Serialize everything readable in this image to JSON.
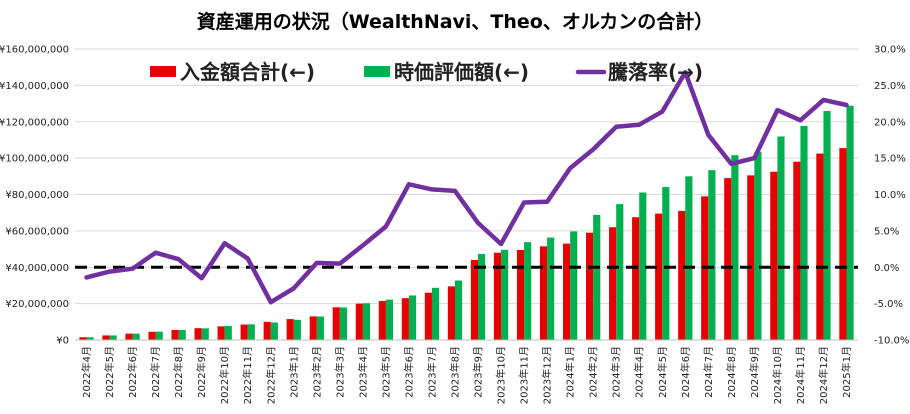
{
  "chart_data": {
    "type": "bar",
    "title": "資産運用の状況（WealthNavi、Theo、オルカンの合計）",
    "categories": [
      "2022年4月",
      "2022年5月",
      "2022年6月",
      "2022年7月",
      "2022年8月",
      "2022年9月",
      "2022年10月",
      "2022年11月",
      "2022年12月",
      "2023年1月",
      "2023年2月",
      "2023年3月",
      "2023年4月",
      "2023年5月",
      "2023年6月",
      "2023年7月",
      "2023年8月",
      "2023年9月",
      "2023年10月",
      "2023年11月",
      "2023年12月",
      "2024年1月",
      "2024年2月",
      "2024年3月",
      "2024年4月",
      "2024年5月",
      "2024年6月",
      "2024年7月",
      "2024年8月",
      "2024年9月",
      "2024年10月",
      "2024年11月",
      "2024年12月",
      "2025年1月"
    ],
    "series": [
      {
        "name": "入金額合計(←)",
        "type": "bar",
        "axis": "left",
        "color": "#e60000",
        "values": [
          1500000,
          2500000,
          3500000,
          4500000,
          5500000,
          6500000,
          7500000,
          8500000,
          10000000,
          11500000,
          13000000,
          18000000,
          20000000,
          21500000,
          23000000,
          26000000,
          29500000,
          44000000,
          48000000,
          49500000,
          51500000,
          53000000,
          59000000,
          62000000,
          67500000,
          69500000,
          71000000,
          79000000,
          89000000,
          90500000,
          92500000,
          98000000,
          102500000,
          105500000
        ]
      },
      {
        "name": "時価評価額(←)",
        "type": "bar",
        "axis": "left",
        "color": "#00b050",
        "values": [
          1500000,
          2500000,
          3500000,
          4600000,
          5500000,
          6400000,
          7700000,
          8600000,
          9600000,
          11100000,
          12900000,
          17900000,
          20200000,
          22200000,
          24500000,
          28700000,
          32700000,
          47300000,
          49600000,
          53800000,
          56300000,
          59700000,
          68800000,
          74700000,
          81100000,
          84100000,
          90000000,
          93400000,
          101600000,
          103500000,
          111900000,
          117700000,
          125900000,
          128800000
        ]
      },
      {
        "name": "騰落率(→)",
        "type": "line",
        "axis": "right",
        "color": "#7030a0",
        "values": [
          -1.4,
          -0.6,
          -0.2,
          2.0,
          1.1,
          -1.5,
          3.3,
          1.2,
          -4.8,
          -2.9,
          0.6,
          0.5,
          3.0,
          5.6,
          11.4,
          10.7,
          10.5,
          6.1,
          3.2,
          8.9,
          9.0,
          13.6,
          16.2,
          19.3,
          19.6,
          21.4,
          26.8,
          18.2,
          14.2,
          15.0,
          21.6,
          20.2,
          23.0,
          22.3
        ]
      }
    ],
    "ylim_left": [
      0,
      160000000
    ],
    "ylim_right": [
      -10,
      30
    ],
    "yticks_left": [
      "¥0",
      "¥20,000,000",
      "¥40,000,000",
      "¥60,000,000",
      "¥80,000,000",
      "¥100,000,000",
      "¥120,000,000",
      "¥140,000,000",
      "¥160,000,000"
    ],
    "yticks_right": [
      "-10.0%",
      "-5.0%",
      "0.0%",
      "5.0%",
      "10.0%",
      "15.0%",
      "20.0%",
      "25.0%",
      "30.0%"
    ],
    "grid": true,
    "zero_line": {
      "style": "dashed",
      "color": "#000000",
      "at_right_value": 0
    },
    "legend": {
      "position": "top-left-inside"
    }
  }
}
